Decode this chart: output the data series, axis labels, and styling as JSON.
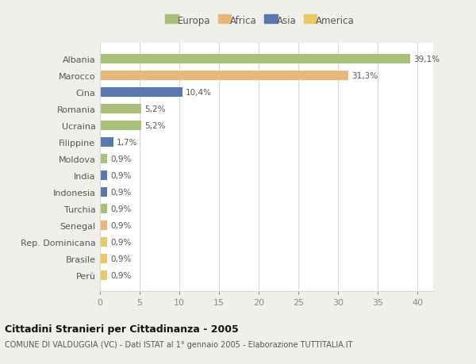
{
  "categories": [
    "Albania",
    "Marocco",
    "Cina",
    "Romania",
    "Ucraina",
    "Filippine",
    "Moldova",
    "India",
    "Indonesia",
    "Turchia",
    "Senegal",
    "Rep. Dominicana",
    "Brasile",
    "Perù"
  ],
  "values": [
    39.1,
    31.3,
    10.4,
    5.2,
    5.2,
    1.7,
    0.9,
    0.9,
    0.9,
    0.9,
    0.9,
    0.9,
    0.9,
    0.9
  ],
  "labels": [
    "39,1%",
    "31,3%",
    "10,4%",
    "5,2%",
    "5,2%",
    "1,7%",
    "0,9%",
    "0,9%",
    "0,9%",
    "0,9%",
    "0,9%",
    "0,9%",
    "0,9%",
    "0,9%"
  ],
  "colors": [
    "#a8c07a",
    "#e8b87a",
    "#5878b0",
    "#a8c07a",
    "#a8c07a",
    "#5878b0",
    "#a8c07a",
    "#5878b0",
    "#5878b0",
    "#a8c07a",
    "#e8b87a",
    "#e8c860",
    "#e8c860",
    "#e8c860"
  ],
  "legend_labels": [
    "Europa",
    "Africa",
    "Asia",
    "America"
  ],
  "legend_colors": [
    "#a8c07a",
    "#e8b87a",
    "#5878b0",
    "#e8c860"
  ],
  "title": "Cittadini Stranieri per Cittadinanza - 2005",
  "subtitle": "COMUNE DI VALDUGGIA (VC) - Dati ISTAT al 1° gennaio 2005 - Elaborazione TUTTITALIA.IT",
  "xlim": [
    0,
    42
  ],
  "xticks": [
    0,
    5,
    10,
    15,
    20,
    25,
    30,
    35,
    40
  ],
  "background_color": "#f0f0eb",
  "plot_bg_color": "#ffffff",
  "grid_color": "#d8d8d8",
  "bar_height": 0.55
}
